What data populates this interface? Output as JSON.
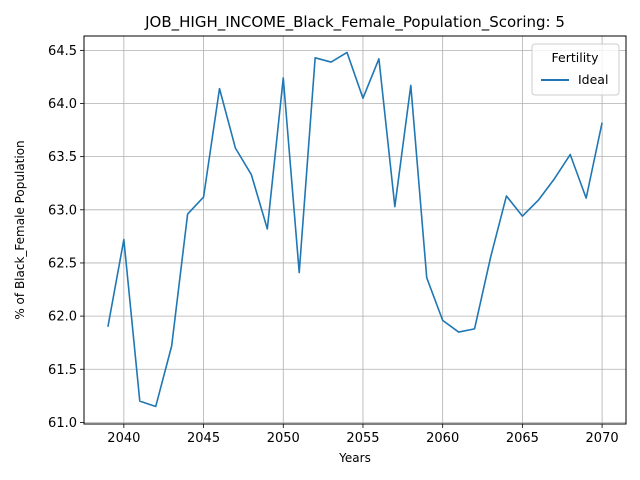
{
  "chart_data": {
    "type": "line",
    "title": "JOB_HIGH_INCOME_Black_Female_Population_Scoring: 5",
    "xlabel": "Years",
    "ylabel": "% of Black_Female Population",
    "xlim": [
      2037.5,
      2071.5
    ],
    "ylim": [
      60.985,
      64.635
    ],
    "xticks": [
      2040,
      2045,
      2050,
      2055,
      2060,
      2065,
      2070
    ],
    "yticks": [
      61.0,
      61.5,
      62.0,
      62.5,
      63.0,
      63.5,
      64.0,
      64.5
    ],
    "grid": true,
    "legend": {
      "title": "Fertility",
      "placement": "top-right"
    },
    "colors": {
      "series": "#1f77b4",
      "grid": "#b0b0b0"
    },
    "x": [
      2039,
      2040,
      2041,
      2042,
      2043,
      2044,
      2045,
      2046,
      2047,
      2048,
      2049,
      2050,
      2051,
      2052,
      2053,
      2054,
      2055,
      2056,
      2057,
      2058,
      2059,
      2060,
      2061,
      2062,
      2063,
      2064,
      2065,
      2066,
      2067,
      2068,
      2069,
      2070
    ],
    "series": [
      {
        "name": "Ideal",
        "values": [
          61.9,
          62.72,
          61.2,
          61.15,
          61.72,
          62.96,
          63.12,
          64.14,
          63.58,
          63.33,
          62.82,
          64.24,
          62.41,
          64.43,
          64.39,
          64.48,
          64.05,
          64.42,
          63.03,
          64.17,
          62.36,
          61.96,
          61.85,
          61.88,
          62.55,
          63.13,
          62.94,
          63.09,
          63.29,
          63.52,
          63.11,
          63.82
        ]
      }
    ]
  }
}
